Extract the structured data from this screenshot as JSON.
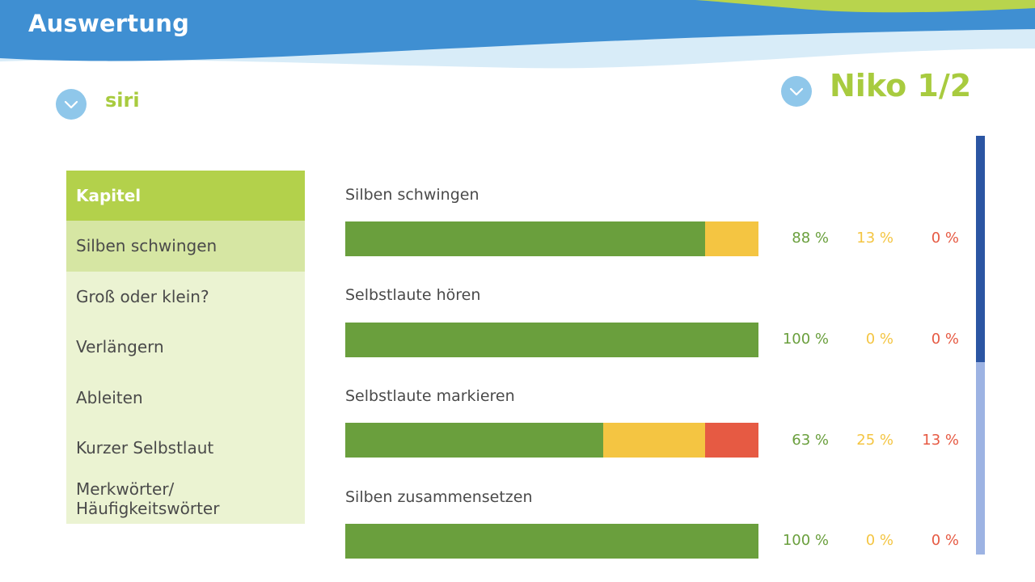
{
  "header": {
    "title": "Auswertung"
  },
  "student": {
    "name": "siri"
  },
  "test": {
    "name": "Niko 1/2"
  },
  "chapters": {
    "heading": "Kapitel",
    "items": [
      {
        "label": "Silben schwingen",
        "selected": true
      },
      {
        "label": "Groß oder klein?",
        "selected": false
      },
      {
        "label": "Verlängern",
        "selected": false
      },
      {
        "label": "Ableiten",
        "selected": false
      },
      {
        "label": "Kurzer Selbstlaut",
        "selected": false
      },
      {
        "label": "Merkwörter/\nHäufigkeitswörter",
        "selected": false
      }
    ]
  },
  "results": [
    {
      "title": "Silben schwingen",
      "correct": 88,
      "partial": 13,
      "wrong": 0,
      "correct_label": "88 %",
      "partial_label": "13 %",
      "wrong_label": "0 %"
    },
    {
      "title": "Selbstlaute hören",
      "correct": 100,
      "partial": 0,
      "wrong": 0,
      "correct_label": "100 %",
      "partial_label": "0 %",
      "wrong_label": "0 %"
    },
    {
      "title": "Selbstlaute markieren",
      "correct": 63,
      "partial": 25,
      "wrong": 13,
      "correct_label": "63 %",
      "partial_label": "25 %",
      "wrong_label": "13 %"
    },
    {
      "title": "Silben zusammensetzen",
      "correct": 100,
      "partial": 0,
      "wrong": 0,
      "correct_label": "100 %",
      "partial_label": "0 %",
      "wrong_label": "0 %"
    }
  ],
  "scroll": {
    "position": 0,
    "visible_fraction": 0.54
  },
  "colors": {
    "header_blue": "#3f8fd2",
    "wave_green": "#b8d44d",
    "wave_light": "#d8ecf8",
    "correct": "#6a9f3d",
    "partial": "#f4c542",
    "wrong": "#e65a43",
    "accent_green": "#a8cb3f"
  },
  "icons": {
    "dropdown": "chevron-down-icon"
  }
}
